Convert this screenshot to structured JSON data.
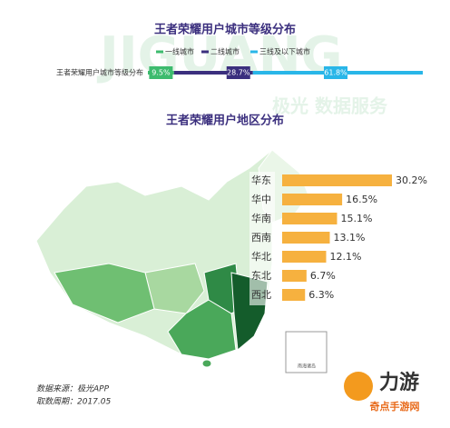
{
  "chart_data": [
    {
      "type": "bar",
      "stacked": true,
      "title": "王者荣耀用户城市等级分布",
      "categories": [
        "王者荣耀用户城市等级分布"
      ],
      "series": [
        {
          "name": "一线城市",
          "color": "#3dbb6e",
          "values": [
            9.5
          ],
          "value_labels": [
            "9.5%"
          ]
        },
        {
          "name": "二线城市",
          "color": "#3b2f7e",
          "values": [
            28.7
          ],
          "value_labels": [
            "28.7%"
          ]
        },
        {
          "name": "三线及以下城市",
          "color": "#29b6e8",
          "values": [
            61.8
          ],
          "value_labels": [
            "61.8%"
          ]
        }
      ]
    },
    {
      "type": "bar",
      "stacked": false,
      "title": "王者荣耀用户地区分布",
      "categories": [
        "华东",
        "华中",
        "华南",
        "西南",
        "华北",
        "东北",
        "西北"
      ],
      "values": [
        30.2,
        16.5,
        15.1,
        13.1,
        12.1,
        6.7,
        6.3
      ],
      "value_labels": [
        "30.2%",
        "16.5%",
        "15.1%",
        "13.1%",
        "12.1%",
        "6.7%",
        "6.3%"
      ],
      "color": "#f6b13f"
    }
  ],
  "map_label": "南海诸岛",
  "watermark": [
    "JIGUANG",
    "极光 数据服务"
  ],
  "source": "数据来源：极光APP",
  "period": "取数周期：2017.05",
  "logo": {
    "name": "力游",
    "site": "奇点手游网"
  }
}
